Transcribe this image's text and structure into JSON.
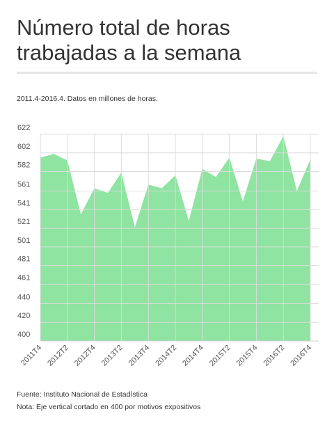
{
  "chart_data": {
    "type": "area",
    "title": "Número total de horas trabajadas a la semana",
    "subtitle": "2011.4-2016.4. Datos en millones de horas.",
    "source": "Fuente: Instituto Nacional de Estadística",
    "note": "Nota: Eje vertical cortado en 400 por motivos expositivos",
    "categories": [
      "2011T4",
      null,
      "2012T2",
      null,
      "2012T4",
      null,
      "2013T2",
      null,
      "2013T4",
      null,
      "2014T2",
      null,
      "2014T4",
      null,
      "2015T2",
      null,
      "2015T4",
      null,
      "2016T2",
      null,
      "2016T4"
    ],
    "values": [
      597,
      601,
      594,
      536,
      564,
      559,
      581,
      522,
      568,
      564,
      578,
      529,
      585,
      576,
      597,
      550,
      596,
      593,
      620,
      561,
      595
    ],
    "color": "#8ee4a0",
    "ylim": [
      400,
      622
    ],
    "yticks": [
      622,
      602,
      582,
      561,
      541,
      521,
      501,
      481,
      461,
      440,
      420,
      400
    ],
    "grid": true
  }
}
